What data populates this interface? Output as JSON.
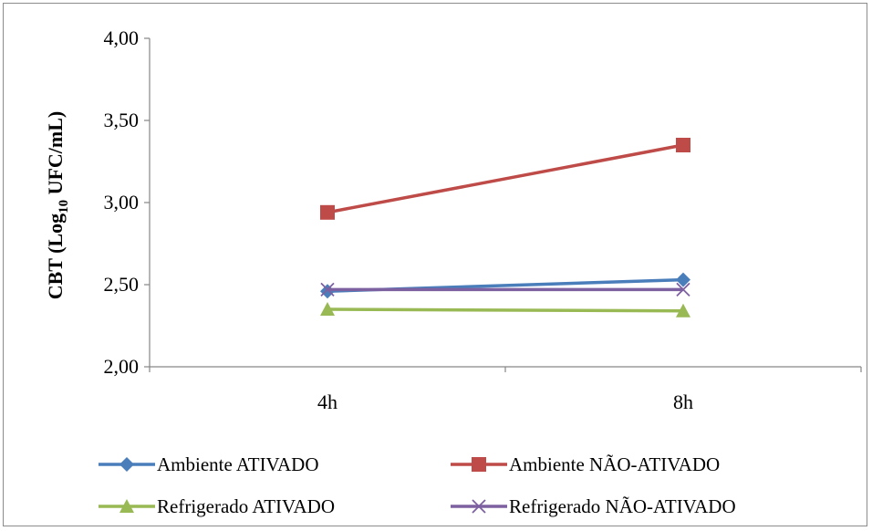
{
  "chart_data": {
    "type": "line",
    "title": "",
    "xlabel": "",
    "ylabel": {
      "prefix": "CBT (Log",
      "subscript": "10",
      "suffix": " UFC/mL)"
    },
    "categories": [
      "4h",
      "8h"
    ],
    "ylim": [
      2.0,
      4.0
    ],
    "yticks": [
      {
        "value": 2.0,
        "label": "2,00"
      },
      {
        "value": 2.5,
        "label": "2,50"
      },
      {
        "value": 3.0,
        "label": "3,00"
      },
      {
        "value": 3.5,
        "label": "3,50"
      },
      {
        "value": 4.0,
        "label": "4,00"
      }
    ],
    "grid": false,
    "legend_position": "bottom",
    "series": [
      {
        "name": "Ambiente ATIVADO",
        "values": [
          2.46,
          2.53
        ],
        "color": "#4a7ebb",
        "marker": "diamond"
      },
      {
        "name": "Ambiente NÃO-ATIVADO",
        "values": [
          2.94,
          3.35
        ],
        "color": "#be4b48",
        "marker": "square"
      },
      {
        "name": "Refrigerado ATIVADO",
        "values": [
          2.35,
          2.34
        ],
        "color": "#98b954",
        "marker": "triangle"
      },
      {
        "name": "Refrigerado NÃO-ATIVADO",
        "values": [
          2.47,
          2.47
        ],
        "color": "#7d60a0",
        "marker": "x"
      }
    ]
  }
}
